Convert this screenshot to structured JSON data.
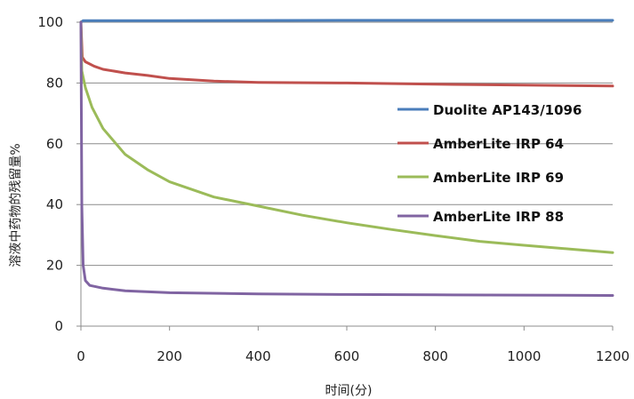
{
  "chart_data": {
    "type": "line",
    "xlabel": "时间(分)",
    "ylabel": "溶液中药物的残留量%",
    "xlim": [
      0,
      1200
    ],
    "ylim": [
      0,
      100
    ],
    "xticks": [
      0,
      200,
      400,
      600,
      800,
      1000,
      1200
    ],
    "yticks": [
      0,
      20,
      40,
      60,
      80,
      100
    ],
    "xtick_labels": [
      "0",
      "200",
      "400",
      "600",
      "800",
      "1000",
      "1200"
    ],
    "ytick_labels": [
      "0",
      "20",
      "40",
      "60",
      "80",
      "100"
    ],
    "grid": "horizontal",
    "legend_position": "right",
    "series": [
      {
        "name": "Duolite AP143/1096",
        "color": "#4a7ebb",
        "points": [
          [
            0,
            100
          ],
          [
            5,
            100.5
          ],
          [
            200,
            100.5
          ],
          [
            600,
            100.6
          ],
          [
            1000,
            100.6
          ],
          [
            1200,
            100.6
          ]
        ]
      },
      {
        "name": "AmberLite IRP 64",
        "color": "#c0504d",
        "points": [
          [
            0,
            100
          ],
          [
            3,
            88.5
          ],
          [
            10,
            87
          ],
          [
            30,
            85.5
          ],
          [
            50,
            84.5
          ],
          [
            100,
            83.3
          ],
          [
            150,
            82.5
          ],
          [
            200,
            81.5
          ],
          [
            300,
            80.6
          ],
          [
            400,
            80.2
          ],
          [
            600,
            80
          ],
          [
            800,
            79.6
          ],
          [
            1000,
            79.3
          ],
          [
            1200,
            79
          ]
        ]
      },
      {
        "name": "AmberLite IRP 69",
        "color": "#9bbb59",
        "points": [
          [
            0,
            100
          ],
          [
            2,
            84
          ],
          [
            10,
            78.5
          ],
          [
            25,
            72
          ],
          [
            50,
            65
          ],
          [
            100,
            56.5
          ],
          [
            150,
            51.5
          ],
          [
            200,
            47.5
          ],
          [
            300,
            42.5
          ],
          [
            400,
            39.5
          ],
          [
            500,
            36.5
          ],
          [
            600,
            34
          ],
          [
            700,
            31.8
          ],
          [
            800,
            29.8
          ],
          [
            900,
            27.9
          ],
          [
            1000,
            26.6
          ],
          [
            1100,
            25.4
          ],
          [
            1200,
            24.2
          ]
        ]
      },
      {
        "name": "AmberLite IRP 88",
        "color": "#8064a2",
        "points": [
          [
            0,
            100
          ],
          [
            2,
            40
          ],
          [
            5,
            20
          ],
          [
            10,
            15
          ],
          [
            20,
            13.4
          ],
          [
            50,
            12.5
          ],
          [
            100,
            11.6
          ],
          [
            200,
            11
          ],
          [
            400,
            10.6
          ],
          [
            600,
            10.4
          ],
          [
            800,
            10.3
          ],
          [
            1000,
            10.2
          ],
          [
            1200,
            10.1
          ]
        ]
      }
    ]
  }
}
